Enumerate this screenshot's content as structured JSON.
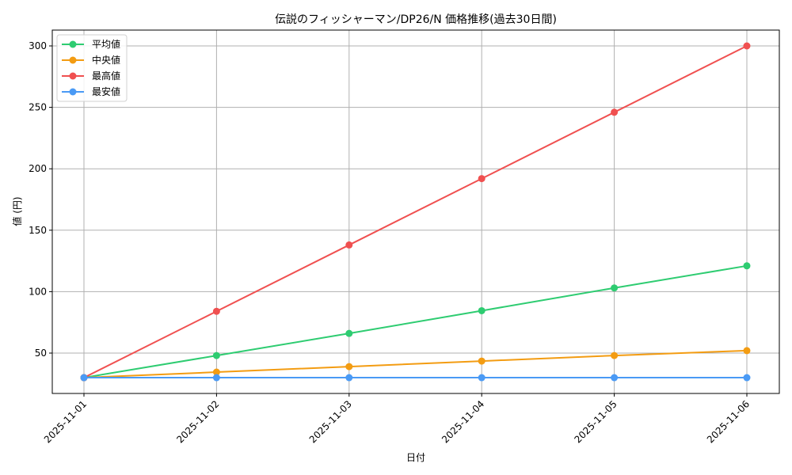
{
  "chart_data": {
    "type": "line",
    "title": "伝説のフィッシャーマン/DP26/N 価格推移(過去30日間)",
    "xlabel": "日付",
    "ylabel": "値 (円)",
    "categories": [
      "2025-11-01",
      "2025-11-02",
      "2025-11-03",
      "2025-11-04",
      "2025-11-05",
      "2025-11-06"
    ],
    "yticks": [
      50,
      100,
      150,
      200,
      250,
      300
    ],
    "ylim": [
      16.5,
      313.5
    ],
    "grid": true,
    "legend_position": "upper left",
    "series": [
      {
        "name": "平均値",
        "color": "#2ecc71",
        "values": [
          30,
          48,
          66,
          84.5,
          103,
          121
        ]
      },
      {
        "name": "中央値",
        "color": "#f39c12",
        "values": [
          30,
          34.5,
          39,
          43.5,
          48,
          52
        ]
      },
      {
        "name": "最高値",
        "color": "#f05050",
        "values": [
          30,
          84,
          138,
          192,
          246,
          300
        ]
      },
      {
        "name": "最安値",
        "color": "#4a9af5",
        "values": [
          30,
          30,
          30,
          30,
          30,
          30
        ]
      }
    ]
  }
}
